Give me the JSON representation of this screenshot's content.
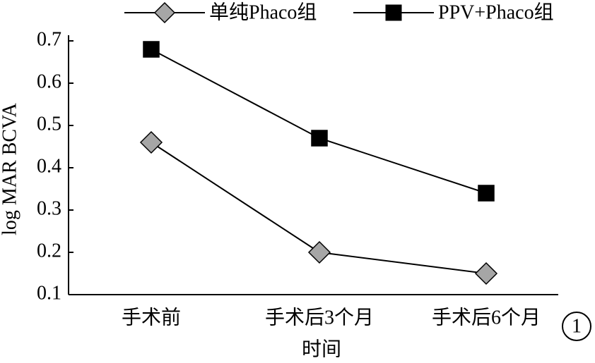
{
  "chart_data": {
    "type": "line",
    "x_label": "时间",
    "y_label": "log MAR BCVA",
    "annotation": "1",
    "categories": [
      "手术前",
      "手术后3个月",
      "手术后6个月"
    ],
    "series": [
      {
        "name": "单纯Phaco组",
        "color": "#a6a6a6",
        "marker": "diamond",
        "values": [
          0.46,
          0.2,
          0.15
        ]
      },
      {
        "name": "PPV+Phaco组",
        "color": "#000000",
        "marker": "square",
        "values": [
          0.68,
          0.47,
          0.34
        ]
      }
    ],
    "ylim": [
      0.1,
      0.7
    ],
    "yticks": [
      0.1,
      0.2,
      0.3,
      0.4,
      0.5,
      0.6,
      0.7
    ],
    "grid": false
  }
}
